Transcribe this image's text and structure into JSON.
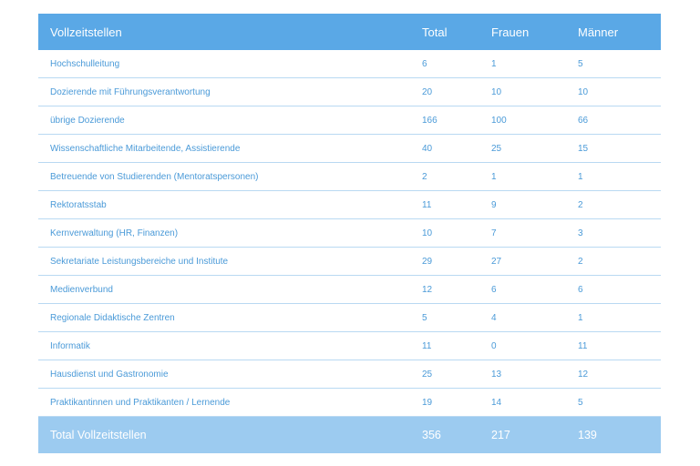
{
  "table": {
    "header": {
      "label": "Vollzeitstellen",
      "total": "Total",
      "frauen": "Frauen",
      "maenner": "Männer"
    },
    "rows": [
      {
        "label": "Hochschulleitung",
        "total": "6",
        "frauen": "1",
        "maenner": "5"
      },
      {
        "label": "Dozierende mit Führungsverantwortung",
        "total": "20",
        "frauen": "10",
        "maenner": "10"
      },
      {
        "label": "übrige Dozierende",
        "total": "166",
        "frauen": "100",
        "maenner": "66"
      },
      {
        "label": "Wissenschaftliche Mitarbeitende, Assistierende",
        "total": "40",
        "frauen": "25",
        "maenner": "15"
      },
      {
        "label": "Betreuende von Studierenden (Mentoratspersonen)",
        "total": "2",
        "frauen": "1",
        "maenner": "1"
      },
      {
        "label": "Rektoratsstab",
        "total": "11",
        "frauen": "9",
        "maenner": "2"
      },
      {
        "label": "Kernverwaltung (HR, Finanzen)",
        "total": "10",
        "frauen": "7",
        "maenner": "3"
      },
      {
        "label": "Sekretariate Leistungsbereiche und Institute",
        "total": "29",
        "frauen": "27",
        "maenner": "2"
      },
      {
        "label": "Medienverbund",
        "total": "12",
        "frauen": "6",
        "maenner": "6"
      },
      {
        "label": "Regionale Didaktische Zentren",
        "total": "5",
        "frauen": "4",
        "maenner": "1"
      },
      {
        "label": "Informatik",
        "total": "11",
        "frauen": "0",
        "maenner": "11"
      },
      {
        "label": "Hausdienst und Gastronomie",
        "total": "25",
        "frauen": "13",
        "maenner": "12"
      },
      {
        "label": "Praktikantinnen und Praktikanten / Lernende",
        "total": "19",
        "frauen": "14",
        "maenner": "5"
      }
    ],
    "footer": {
      "label": "Total Vollzeitstellen",
      "total": "356",
      "frauen": "217",
      "maenner": "139"
    }
  },
  "colors": {
    "header_bg": "#5aa8e6",
    "footer_bg": "#9ccbf0",
    "row_text": "#4a9ad8",
    "row_divider": "#b9d9f2"
  }
}
